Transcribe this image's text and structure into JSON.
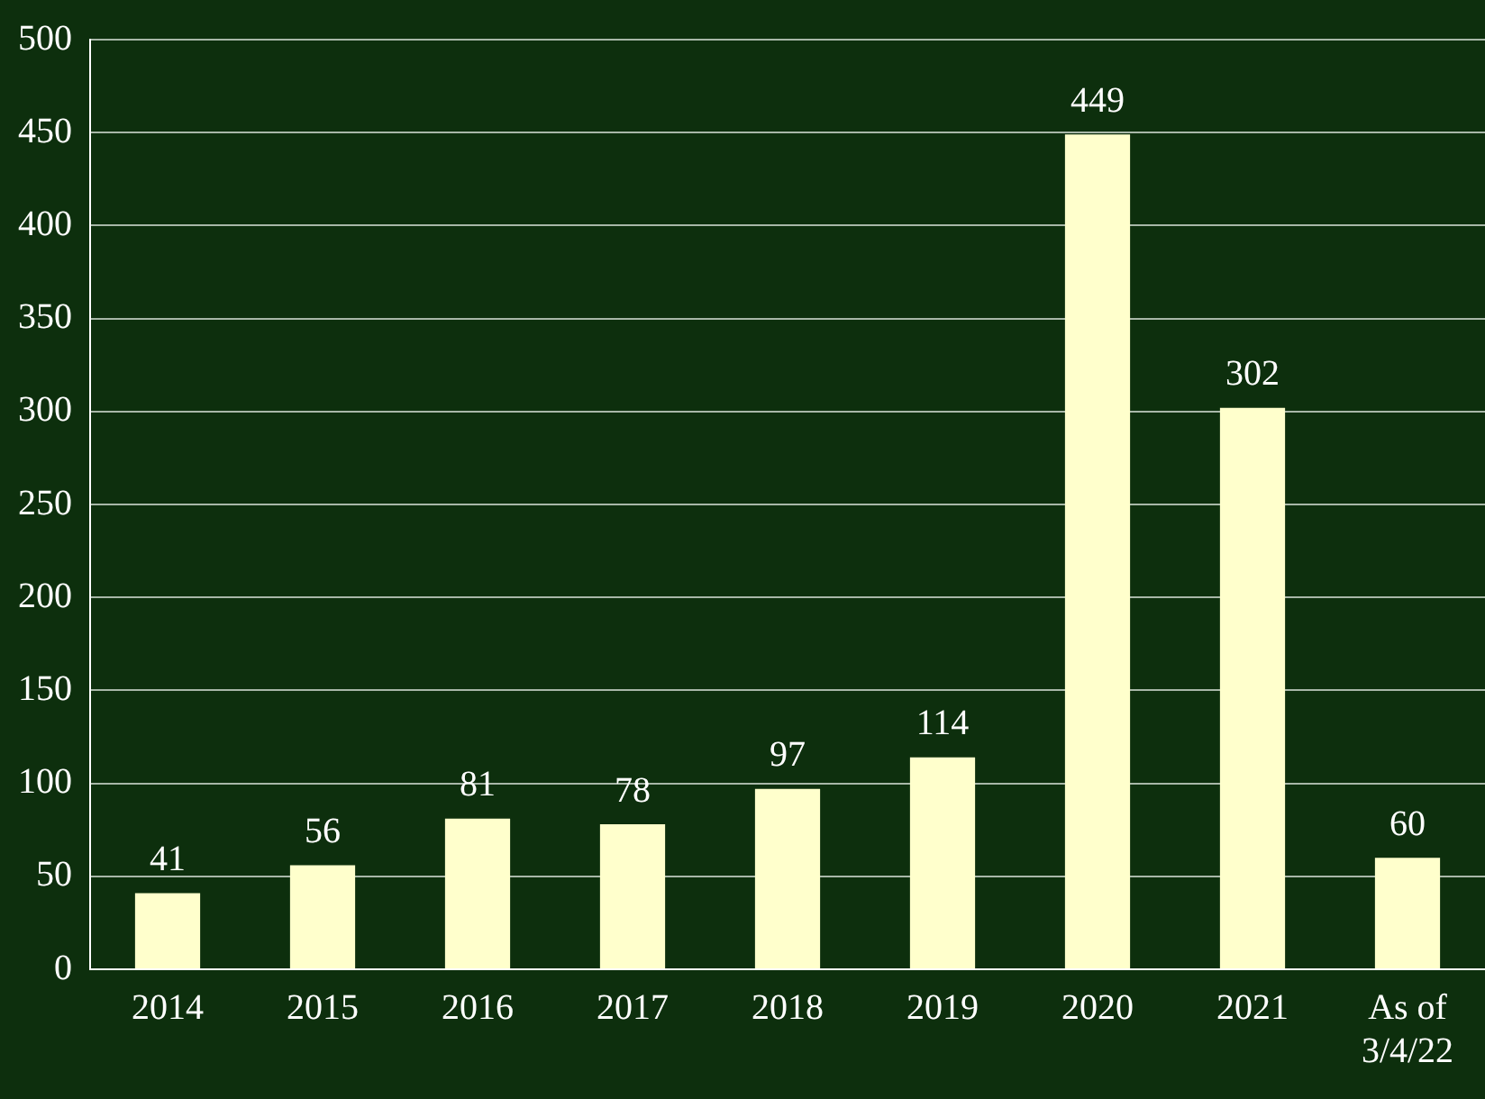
{
  "chart_data": {
    "type": "bar",
    "categories": [
      "2014",
      "2015",
      "2016",
      "2017",
      "2018",
      "2019",
      "2020",
      "2021",
      "As of 3/4/22"
    ],
    "values": [
      41,
      56,
      81,
      78,
      97,
      114,
      449,
      302,
      60
    ],
    "color": "#ffffcc",
    "ylim": [
      0,
      500
    ],
    "yticks": [
      0,
      50,
      100,
      150,
      200,
      250,
      300,
      350,
      400,
      450,
      500
    ],
    "grid": "y",
    "data_labels": true,
    "legend": false
  }
}
